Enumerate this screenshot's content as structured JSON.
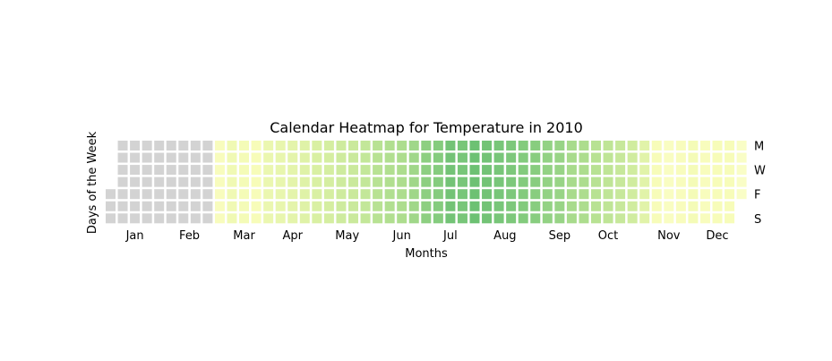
{
  "chart_data": {
    "type": "heatmap",
    "title": "Calendar Heatmap for Temperature in 2010",
    "xlabel": "Months",
    "ylabel": "Days of the Week",
    "year": 2010,
    "month_labels": [
      "Jan",
      "Feb",
      "Mar",
      "Apr",
      "May",
      "Jun",
      "Jul",
      "Aug",
      "Sep",
      "Oct",
      "Nov",
      "Dec"
    ],
    "weekday_labels": [
      "M",
      "W",
      "F",
      "S"
    ],
    "weekday_label_rows": [
      0,
      2,
      4,
      6
    ],
    "missing_color": "#d3d3d3",
    "colormap": [
      "#ffffe5",
      "#f7fcb9",
      "#d9f0a3",
      "#addd8e",
      "#78c679",
      "#41ab5d"
    ],
    "grid": false,
    "values_note": "Weekly mean temperature estimated from cell color, normalized 0 (lightest yellow) to 1 (darkest green); null = no data (grey).",
    "weekly_values": [
      null,
      null,
      null,
      null,
      null,
      null,
      null,
      null,
      null,
      0.18,
      0.25,
      0.22,
      0.2,
      0.28,
      0.3,
      0.33,
      0.36,
      0.4,
      0.42,
      0.45,
      0.47,
      0.5,
      0.55,
      0.58,
      0.6,
      0.65,
      0.72,
      0.75,
      0.82,
      0.8,
      0.84,
      0.82,
      0.8,
      0.78,
      0.76,
      0.74,
      0.7,
      0.68,
      0.62,
      0.6,
      0.55,
      0.52,
      0.48,
      0.44,
      0.35,
      0.2,
      0.16,
      0.18,
      0.22,
      0.18,
      0.2,
      0.2,
      0.14
    ]
  }
}
